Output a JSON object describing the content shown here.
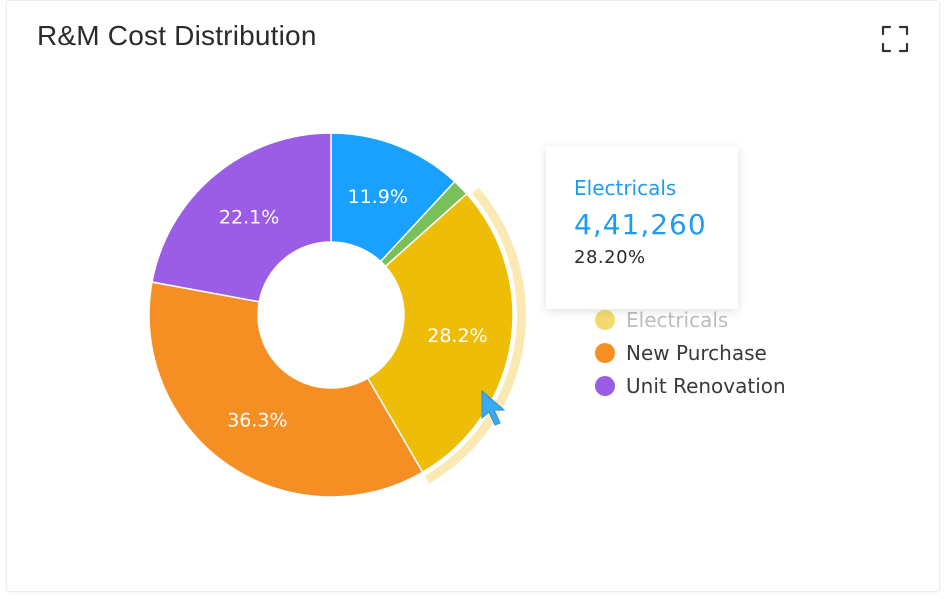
{
  "widget": {
    "title": "R&M Cost Distribution"
  },
  "icons": {
    "expand": "expand-icon",
    "cursor": "mouse-pointer-icon"
  },
  "chart_data": {
    "type": "pie",
    "donut": true,
    "title": "R&M Cost Distribution",
    "slices": [
      {
        "name": "",
        "percent": 11.9,
        "label": "11.9%",
        "color": "#1aa1ff"
      },
      {
        "name": "",
        "percent": 1.5,
        "label": "",
        "color": "#7ac05a"
      },
      {
        "name": "Electricals",
        "percent": 28.2,
        "label": "28.2%",
        "color": "#eebd08",
        "highlighted": true
      },
      {
        "name": "New Purchase",
        "percent": 36.3,
        "label": "36.3%",
        "color": "#f68f23"
      },
      {
        "name": "Unit Renovation",
        "percent": 22.1,
        "label": "22.1%",
        "color": "#9b5de5"
      }
    ],
    "legend_position": "right"
  },
  "legend": {
    "items": [
      {
        "label": "Electricals",
        "color": "#eebd08"
      },
      {
        "label": "New Purchase",
        "color": "#f68f23"
      },
      {
        "label": "Unit Renovation",
        "color": "#9b5de5"
      }
    ]
  },
  "tooltip": {
    "name": "Electricals",
    "value": "4,41,260",
    "percent": "28.20%"
  },
  "colors": {
    "accent": "#1f9cf0",
    "highlight_ring": "#fbe9b4"
  }
}
